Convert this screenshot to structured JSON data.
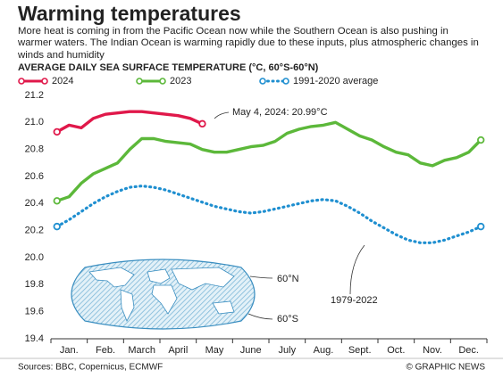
{
  "chart_data": {
    "type": "line",
    "title": "Warming temperatures",
    "subtitle": "More heat is coming in from the Pacific Ocean now while the Southern Ocean is also pushing in warmer waters. The Indian Ocean is warming rapidly due to these inputs, plus atmospheric changes in winds and humidity",
    "y_label": "AVERAGE DAILY SEA SURFACE TEMPERATURE (°C, 60°S-60°N)",
    "categories": [
      null,
      "Jan.",
      null,
      null,
      "Feb.",
      null,
      null,
      "March",
      null,
      null,
      "April",
      null,
      null,
      "May",
      null,
      null,
      "June",
      null,
      null,
      "July",
      null,
      null,
      "Aug.",
      null,
      null,
      "Sept.",
      null,
      null,
      "Oct.",
      null,
      null,
      "Nov.",
      null,
      null,
      "Dec.",
      null
    ],
    "series": [
      {
        "name": "2024",
        "color": "#e0184a",
        "values": [
          20.93,
          20.98,
          20.96,
          21.03,
          21.06,
          21.07,
          21.08,
          21.08,
          21.07,
          21.06,
          21.05,
          21.03,
          20.99,
          null,
          null,
          null,
          null,
          null,
          null,
          null,
          null,
          null,
          null,
          null,
          null,
          null,
          null,
          null,
          null,
          null,
          null,
          null,
          null,
          null,
          null,
          null
        ]
      },
      {
        "name": "2023",
        "color": "#5cb83a",
        "values": [
          20.42,
          20.45,
          20.55,
          20.62,
          20.66,
          20.7,
          20.8,
          20.88,
          20.88,
          20.86,
          20.85,
          20.84,
          20.8,
          20.78,
          20.78,
          20.8,
          20.82,
          20.83,
          20.86,
          20.92,
          20.95,
          20.97,
          20.98,
          21.0,
          20.95,
          20.9,
          20.87,
          20.82,
          20.78,
          20.76,
          20.7,
          20.68,
          20.72,
          20.74,
          20.78,
          20.87
        ]
      },
      {
        "name": "1991-2020 average",
        "color": "#1f8fd0",
        "dashed": true,
        "values": [
          20.23,
          20.28,
          20.34,
          20.4,
          20.45,
          20.49,
          20.52,
          20.53,
          20.52,
          20.5,
          20.47,
          20.44,
          20.41,
          20.38,
          20.36,
          20.34,
          20.33,
          20.34,
          20.36,
          20.38,
          20.4,
          20.42,
          20.43,
          20.42,
          20.38,
          20.33,
          20.27,
          20.22,
          20.17,
          20.13,
          20.11,
          20.11,
          20.13,
          20.16,
          20.19,
          20.23
        ]
      }
    ],
    "ylim": [
      19.4,
      21.2
    ],
    "yticks": [
      19.4,
      19.6,
      19.8,
      {
        "value": 20,
        "label": "20.0"
      },
      20.2,
      20.4,
      20.6,
      20.8,
      {
        "value": 21,
        "label": "21.0"
      },
      21.2
    ],
    "grid": false,
    "annotations": [
      "May 4, 2024: 20.99°C",
      "1979-2022",
      "60°N",
      "60°S"
    ],
    "source": "Sources: BBC, Copernicus, ECMWF",
    "credit": "© GRAPHIC NEWS"
  }
}
